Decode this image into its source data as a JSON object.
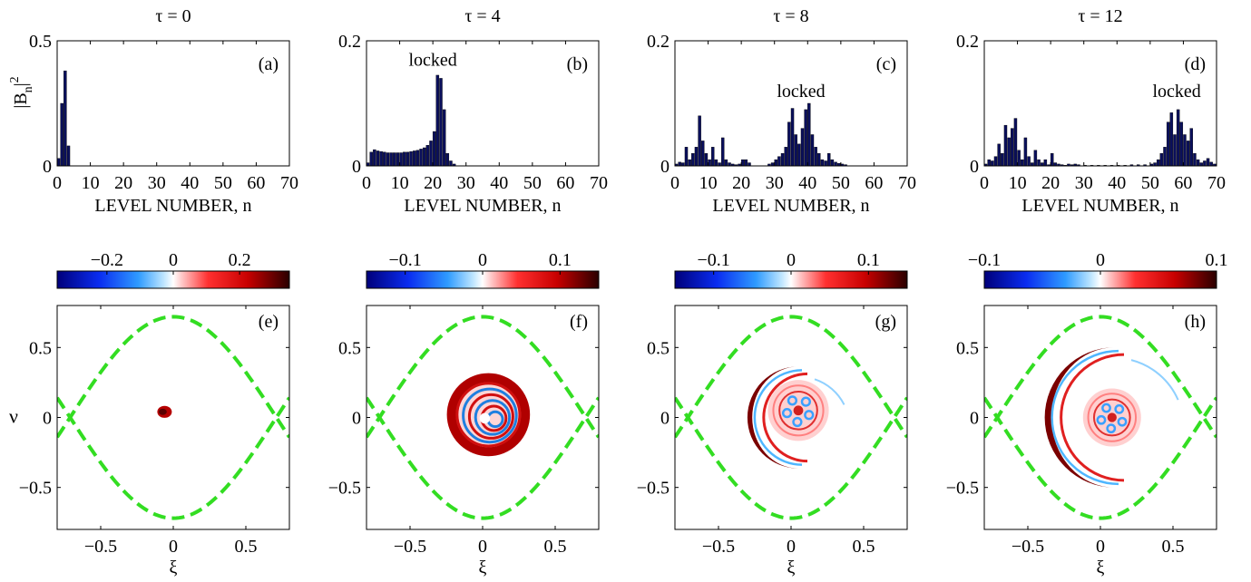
{
  "chart_data": [
    {
      "type": "bar",
      "id": "a",
      "title": "τ = 0",
      "panel_label": "(a)",
      "ylabel": "|B_n|^2",
      "xlabel": "LEVEL NUMBER, n",
      "xlim": [
        0,
        70
      ],
      "ylim": [
        0,
        0.5
      ],
      "xticks": [
        "0",
        "10",
        "20",
        "30",
        "40",
        "50",
        "60",
        "70"
      ],
      "yticks": [
        "0",
        "0.5"
      ],
      "bar_color": "#0a0f5c",
      "x": [
        0,
        1,
        2,
        3
      ],
      "values": [
        0.03,
        0.25,
        0.38,
        0.08
      ]
    },
    {
      "type": "bar",
      "id": "b",
      "title": "τ = 4",
      "panel_label": "(b)",
      "annotation": "locked",
      "annotation_at": [
        20,
        0.16
      ],
      "xlabel": "LEVEL NUMBER, n",
      "xlim": [
        0,
        70
      ],
      "ylim": [
        0,
        0.2
      ],
      "xticks": [
        "0",
        "10",
        "20",
        "30",
        "40",
        "50",
        "60",
        "70"
      ],
      "yticks": [
        "0",
        "0.2"
      ],
      "bar_color": "#0a0f5c",
      "x": [
        0,
        1,
        2,
        3,
        4,
        5,
        6,
        7,
        8,
        9,
        10,
        11,
        12,
        13,
        14,
        15,
        16,
        17,
        18,
        19,
        20,
        21,
        22,
        23,
        24,
        25,
        26
      ],
      "values": [
        0.005,
        0.022,
        0.026,
        0.024,
        0.023,
        0.022,
        0.021,
        0.021,
        0.021,
        0.021,
        0.021,
        0.022,
        0.022,
        0.023,
        0.024,
        0.025,
        0.027,
        0.029,
        0.033,
        0.04,
        0.055,
        0.145,
        0.14,
        0.09,
        0.02,
        0.008,
        0.003
      ]
    },
    {
      "type": "bar",
      "id": "c",
      "title": "τ = 8",
      "panel_label": "(c)",
      "annotation": "locked",
      "annotation_at": [
        38,
        0.11
      ],
      "xlabel": "LEVEL NUMBER, n",
      "xlim": [
        0,
        70
      ],
      "ylim": [
        0,
        0.2
      ],
      "xticks": [
        "0",
        "10",
        "20",
        "30",
        "40",
        "50",
        "60",
        "70"
      ],
      "yticks": [
        "0",
        "0.2"
      ],
      "bar_color": "#0a0f5c",
      "x": [
        0,
        1,
        2,
        3,
        4,
        5,
        6,
        7,
        8,
        9,
        10,
        11,
        12,
        13,
        14,
        15,
        16,
        17,
        18,
        19,
        20,
        21,
        22,
        28,
        29,
        30,
        31,
        32,
        33,
        34,
        35,
        36,
        37,
        38,
        39,
        40,
        41,
        42,
        43,
        44,
        45,
        46,
        47,
        48,
        49,
        50,
        51
      ],
      "values": [
        0.003,
        0.006,
        0.005,
        0.03,
        0.01,
        0.02,
        0.03,
        0.08,
        0.04,
        0.02,
        0.01,
        0.03,
        0.01,
        0.005,
        0.045,
        0.01,
        0.005,
        0.003,
        0.002,
        0.003,
        0.01,
        0.01,
        0.005,
        0.003,
        0.005,
        0.01,
        0.015,
        0.02,
        0.03,
        0.07,
        0.092,
        0.05,
        0.035,
        0.06,
        0.09,
        0.1,
        0.05,
        0.03,
        0.02,
        0.01,
        0.008,
        0.02,
        0.01,
        0.006,
        0.004,
        0.003,
        0.002
      ]
    },
    {
      "type": "bar",
      "id": "d",
      "title": "τ = 12",
      "panel_label": "(d)",
      "annotation": "locked",
      "annotation_at": [
        58,
        0.11
      ],
      "xlabel": "LEVEL NUMBER, n",
      "xlim": [
        0,
        70
      ],
      "ylim": [
        0,
        0.2
      ],
      "xticks": [
        "0",
        "10",
        "20",
        "30",
        "40",
        "50",
        "60",
        "70"
      ],
      "yticks": [
        "0",
        "0.2"
      ],
      "bar_color": "#0a0f5c",
      "x": [
        0,
        1,
        2,
        3,
        4,
        5,
        6,
        7,
        8,
        9,
        10,
        11,
        12,
        13,
        14,
        15,
        16,
        17,
        18,
        19,
        20,
        21,
        22,
        23,
        24,
        25,
        26,
        27,
        28,
        30,
        32,
        34,
        36,
        38,
        40,
        42,
        44,
        46,
        48,
        50,
        51,
        52,
        53,
        54,
        55,
        56,
        57,
        58,
        59,
        60,
        61,
        62,
        63,
        64,
        65,
        66,
        67,
        68,
        69
      ],
      "values": [
        0.003,
        0.01,
        0.008,
        0.015,
        0.035,
        0.02,
        0.065,
        0.045,
        0.06,
        0.076,
        0.025,
        0.01,
        0.045,
        0.015,
        0.005,
        0.025,
        0.01,
        0.005,
        0.01,
        0.002,
        0.02,
        0.005,
        0.003,
        0.002,
        0.001,
        0.003,
        0.002,
        0.003,
        0.002,
        0.001,
        0.001,
        0.001,
        0.001,
        0.001,
        0.001,
        0.001,
        0.002,
        0.002,
        0.002,
        0.003,
        0.005,
        0.01,
        0.02,
        0.03,
        0.07,
        0.085,
        0.05,
        0.09,
        0.07,
        0.05,
        0.04,
        0.06,
        0.02,
        0.01,
        0.005,
        0.008,
        0.012,
        0.006,
        0.003
      ]
    },
    {
      "type": "heatmap",
      "id": "e",
      "panel_label": "(e)",
      "colorbar": {
        "range": [
          -0.35,
          0.35
        ],
        "ticks": [
          -0.2,
          0,
          0.2
        ],
        "tick_labels": [
          "−0.2",
          "0",
          "0.2"
        ]
      },
      "xlabel": "ξ",
      "ylabel": "ν",
      "xlim": [
        -0.8,
        0.8
      ],
      "ylim": [
        -0.8,
        0.8
      ],
      "xticks": [
        "−0.5",
        "0",
        "0.5"
      ],
      "yticks": [
        "−0.5",
        "0",
        "0.5"
      ],
      "separatrix": {
        "amplitude": 0.72,
        "color": "#33dd22"
      },
      "features": [
        {
          "shape": "blob",
          "cx": -0.06,
          "cy": 0.04,
          "r": 0.05,
          "sign": "positive"
        }
      ]
    },
    {
      "type": "heatmap",
      "id": "f",
      "panel_label": "(f)",
      "colorbar": {
        "range": [
          -0.15,
          0.15
        ],
        "ticks": [
          -0.1,
          0,
          0.1
        ],
        "tick_labels": [
          "−0.1",
          "0",
          "0.1"
        ]
      },
      "xlabel": "ξ",
      "xlim": [
        -0.8,
        0.8
      ],
      "ylim": [
        -0.8,
        0.8
      ],
      "xticks": [
        "−0.5",
        "0",
        "0.5"
      ],
      "yticks": [
        "−0.5",
        "0",
        "0.5"
      ],
      "separatrix": {
        "amplitude": 0.72,
        "color": "#33dd22"
      },
      "features": [
        {
          "shape": "spiral",
          "cx": 0.04,
          "cy": 0.02,
          "r": 0.3,
          "sign": "mixed"
        }
      ]
    },
    {
      "type": "heatmap",
      "id": "g",
      "panel_label": "(g)",
      "colorbar": {
        "range": [
          -0.15,
          0.15
        ],
        "ticks": [
          -0.1,
          0,
          0.1
        ],
        "tick_labels": [
          "−0.1",
          "0",
          "0.1"
        ]
      },
      "xlabel": "ξ",
      "xlim": [
        -0.8,
        0.8
      ],
      "ylim": [
        -0.8,
        0.8
      ],
      "xticks": [
        "−0.5",
        "0",
        "0.5"
      ],
      "yticks": [
        "−0.5",
        "0",
        "0.5"
      ],
      "separatrix": {
        "amplitude": 0.72,
        "color": "#33dd22"
      },
      "features": [
        {
          "shape": "crescent",
          "cx": 0.05,
          "cy": 0.0,
          "r": 0.45,
          "sign": "positive"
        },
        {
          "shape": "core",
          "cx": 0.05,
          "cy": 0.05,
          "r": 0.21,
          "sign": "mixed"
        }
      ]
    },
    {
      "type": "heatmap",
      "id": "h",
      "panel_label": "(h)",
      "colorbar": {
        "range": [
          -0.1,
          0.1
        ],
        "ticks": [
          -0.1,
          0,
          0.1
        ],
        "tick_labels": [
          "−0.1",
          "0",
          "0.1"
        ]
      },
      "xlabel": "ξ",
      "xlim": [
        -0.8,
        0.8
      ],
      "ylim": [
        -0.8,
        0.8
      ],
      "xticks": [
        "−0.5",
        "0",
        "0.5"
      ],
      "yticks": [
        "−0.5",
        "0",
        "0.5"
      ],
      "separatrix": {
        "amplitude": 0.72,
        "color": "#33dd22"
      },
      "features": [
        {
          "shape": "crescent",
          "cx": 0.1,
          "cy": 0.0,
          "r": 0.62,
          "sign": "positive"
        },
        {
          "shape": "core",
          "cx": 0.08,
          "cy": 0.0,
          "r": 0.2,
          "sign": "mixed"
        }
      ]
    }
  ]
}
